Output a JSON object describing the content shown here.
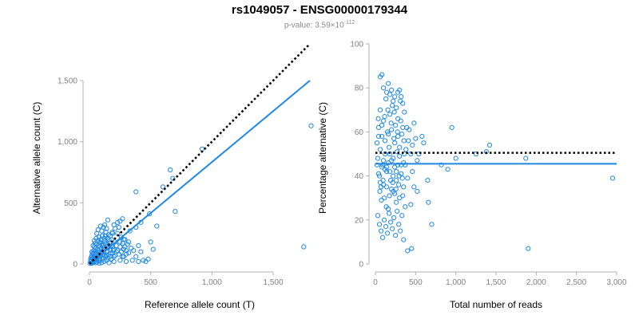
{
  "header": {
    "title": "rs1049057 - ENSG00000179344",
    "pvalue_prefix": "p-value: 3.59×10",
    "pvalue_exp": "-112"
  },
  "colors": {
    "points": "#1e88e5",
    "fit_line": "#1e88e5",
    "reference_line": "#000000",
    "tick_text": "#7f7f7f",
    "axis": "#b0b0b0"
  },
  "chart_data": [
    {
      "type": "scatter",
      "xlabel": "Reference allele count (T)",
      "ylabel": "Alternative allele count (C)",
      "xlim": [
        0,
        1800
      ],
      "ylim": [
        0,
        1800
      ],
      "xticks": [
        0,
        500,
        1000,
        1500
      ],
      "xtick_labels": [
        "0",
        "500",
        "1,000",
        "1,500"
      ],
      "yticks": [
        0,
        500,
        1000,
        1500
      ],
      "ytick_labels": [
        "0",
        "500",
        "1,000",
        "1,500"
      ],
      "grid": false,
      "reference_line": {
        "style": "dotted",
        "x": [
          0,
          1800
        ],
        "y": [
          0,
          1800
        ]
      },
      "fit_line": {
        "style": "solid",
        "x": [
          0,
          1800
        ],
        "y": [
          0,
          1500
        ]
      },
      "points": [
        [
          20,
          5
        ],
        [
          30,
          12
        ],
        [
          40,
          20
        ],
        [
          15,
          30
        ],
        [
          25,
          45
        ],
        [
          50,
          10
        ],
        [
          60,
          35
        ],
        [
          35,
          60
        ],
        [
          45,
          80
        ],
        [
          70,
          55
        ],
        [
          80,
          25
        ],
        [
          90,
          70
        ],
        [
          55,
          100
        ],
        [
          65,
          120
        ],
        [
          100,
          90
        ],
        [
          110,
          40
        ],
        [
          75,
          150
        ],
        [
          85,
          180
        ],
        [
          120,
          130
        ],
        [
          130,
          60
        ],
        [
          140,
          100
        ],
        [
          95,
          200
        ],
        [
          105,
          230
        ],
        [
          60,
          250
        ],
        [
          70,
          280
        ],
        [
          150,
          160
        ],
        [
          160,
          80
        ],
        [
          170,
          120
        ],
        [
          115,
          300
        ],
        [
          125,
          320
        ],
        [
          90,
          310
        ],
        [
          135,
          260
        ],
        [
          180,
          200
        ],
        [
          190,
          140
        ],
        [
          200,
          60
        ],
        [
          210,
          180
        ],
        [
          220,
          100
        ],
        [
          230,
          250
        ],
        [
          240,
          300
        ],
        [
          250,
          140
        ],
        [
          260,
          220
        ],
        [
          30,
          90
        ],
        [
          40,
          140
        ],
        [
          20,
          70
        ],
        [
          10,
          20
        ],
        [
          45,
          170
        ],
        [
          55,
          210
        ],
        [
          35,
          110
        ],
        [
          65,
          65
        ],
        [
          75,
          95
        ],
        [
          85,
          45
        ],
        [
          95,
          130
        ],
        [
          105,
          165
        ],
        [
          115,
          75
        ],
        [
          125,
          190
        ],
        [
          145,
          210
        ],
        [
          155,
          240
        ],
        [
          165,
          170
        ],
        [
          175,
          90
        ],
        [
          185,
          260
        ],
        [
          195,
          110
        ],
        [
          15,
          55
        ],
        [
          25,
          85
        ],
        [
          35,
          35
        ],
        [
          50,
          130
        ],
        [
          60,
          160
        ],
        [
          70,
          190
        ],
        [
          80,
          220
        ],
        [
          100,
          270
        ],
        [
          110,
          110
        ],
        [
          120,
          210
        ],
        [
          130,
          170
        ],
        [
          140,
          290
        ],
        [
          150,
          130
        ],
        [
          160,
          200
        ],
        [
          170,
          230
        ],
        [
          180,
          150
        ],
        [
          190,
          250
        ],
        [
          270,
          170
        ],
        [
          280,
          120
        ],
        [
          290,
          200
        ],
        [
          300,
          80
        ],
        [
          310,
          160
        ],
        [
          320,
          90
        ],
        [
          340,
          130
        ],
        [
          360,
          110
        ],
        [
          380,
          60
        ],
        [
          400,
          150
        ],
        [
          420,
          100
        ],
        [
          440,
          30
        ],
        [
          460,
          20
        ],
        [
          480,
          40
        ],
        [
          500,
          180
        ],
        [
          520,
          120
        ],
        [
          380,
          590
        ],
        [
          490,
          410
        ],
        [
          600,
          630
        ],
        [
          660,
          770
        ],
        [
          680,
          700
        ],
        [
          920,
          940
        ],
        [
          1750,
          140
        ],
        [
          1810,
          1130
        ],
        [
          700,
          430
        ],
        [
          550,
          310
        ],
        [
          380,
          300
        ],
        [
          420,
          340
        ],
        [
          330,
          270
        ],
        [
          250,
          350
        ],
        [
          200,
          320
        ],
        [
          150,
          360
        ],
        [
          270,
          370
        ],
        [
          230,
          340
        ],
        [
          210,
          290
        ],
        [
          250,
          30
        ],
        [
          300,
          20
        ],
        [
          350,
          30
        ],
        [
          400,
          20
        ],
        [
          280,
          60
        ],
        [
          200,
          20
        ],
        [
          160,
          10
        ],
        [
          140,
          30
        ],
        [
          120,
          20
        ],
        [
          100,
          10
        ],
        [
          80,
          5
        ],
        [
          60,
          15
        ],
        [
          40,
          40
        ],
        [
          25,
          15
        ],
        [
          15,
          10
        ],
        [
          5,
          5
        ],
        [
          10,
          40
        ],
        [
          20,
          100
        ],
        [
          30,
          150
        ],
        [
          40,
          190
        ],
        [
          50,
          50
        ],
        [
          60,
          80
        ],
        [
          70,
          110
        ],
        [
          80,
          140
        ],
        [
          90,
          170
        ],
        [
          100,
          50
        ],
        [
          110,
          150
        ],
        [
          120,
          100
        ],
        [
          130,
          230
        ],
        [
          140,
          70
        ],
        [
          150,
          50
        ],
        [
          160,
          140
        ],
        [
          170,
          60
        ],
        [
          180,
          40
        ],
        [
          190,
          90
        ],
        [
          200,
          120
        ],
        [
          210,
          70
        ],
        [
          220,
          150
        ],
        [
          230,
          110
        ],
        [
          240,
          80
        ],
        [
          250,
          180
        ],
        [
          260,
          100
        ],
        [
          270,
          60
        ],
        [
          280,
          200
        ],
        [
          290,
          140
        ],
        [
          300,
          110
        ],
        [
          320,
          180
        ]
      ]
    },
    {
      "type": "scatter",
      "xlabel": "Total number of reads",
      "ylabel": "Percentage alternative (C)",
      "xlim": [
        0,
        3000
      ],
      "ylim": [
        0,
        100
      ],
      "xticks": [
        0,
        500,
        1000,
        1500,
        2000,
        2500,
        3000
      ],
      "xtick_labels": [
        "0",
        "500",
        "1,000",
        "1,500",
        "2,000",
        "2,500",
        "3,000"
      ],
      "yticks": [
        0,
        20,
        40,
        60,
        80,
        100
      ],
      "ytick_labels": [
        "0",
        "20",
        "40",
        "60",
        "80",
        "100"
      ],
      "grid": false,
      "reference_line": {
        "style": "dotted",
        "x": [
          0,
          3000
        ],
        "y": [
          50.5,
          50.5
        ]
      },
      "fit_line": {
        "style": "solid",
        "x": [
          0,
          3000
        ],
        "y": [
          45.5,
          45.5
        ]
      },
      "points": [
        [
          20,
          55
        ],
        [
          30,
          48
        ],
        [
          40,
          62
        ],
        [
          50,
          40
        ],
        [
          60,
          70
        ],
        [
          70,
          35
        ],
        [
          80,
          58
        ],
        [
          90,
          45
        ],
        [
          100,
          65
        ],
        [
          110,
          30
        ],
        [
          120,
          50
        ],
        [
          130,
          75
        ],
        [
          140,
          42
        ],
        [
          150,
          60
        ],
        [
          160,
          25
        ],
        [
          170,
          53
        ],
        [
          180,
          68
        ],
        [
          190,
          38
        ],
        [
          200,
          47
        ],
        [
          210,
          72
        ],
        [
          220,
          33
        ],
        [
          230,
          57
        ],
        [
          240,
          44
        ],
        [
          250,
          63
        ],
        [
          260,
          28
        ],
        [
          270,
          51
        ],
        [
          280,
          66
        ],
        [
          290,
          36
        ],
        [
          300,
          49
        ],
        [
          310,
          74
        ],
        [
          320,
          41
        ],
        [
          330,
          59
        ],
        [
          340,
          31
        ],
        [
          350,
          46
        ],
        [
          360,
          69
        ],
        [
          380,
          52
        ],
        [
          400,
          39
        ],
        [
          420,
          61
        ],
        [
          440,
          27
        ],
        [
          460,
          54
        ],
        [
          480,
          35
        ],
        [
          500,
          57
        ],
        [
          520,
          33
        ],
        [
          60,
          85
        ],
        [
          80,
          86
        ],
        [
          100,
          80
        ],
        [
          140,
          78
        ],
        [
          160,
          82
        ],
        [
          180,
          77
        ],
        [
          200,
          79
        ],
        [
          220,
          74
        ],
        [
          240,
          76
        ],
        [
          260,
          71
        ],
        [
          280,
          78
        ],
        [
          300,
          79
        ],
        [
          320,
          76
        ],
        [
          340,
          73
        ],
        [
          30,
          22
        ],
        [
          50,
          18
        ],
        [
          70,
          15
        ],
        [
          90,
          12
        ],
        [
          110,
          20
        ],
        [
          130,
          17
        ],
        [
          150,
          14
        ],
        [
          170,
          23
        ],
        [
          190,
          19
        ],
        [
          210,
          16
        ],
        [
          230,
          21
        ],
        [
          250,
          13
        ],
        [
          270,
          24
        ],
        [
          290,
          18
        ],
        [
          310,
          15
        ],
        [
          330,
          22
        ],
        [
          350,
          11
        ],
        [
          370,
          26
        ],
        [
          400,
          6
        ],
        [
          450,
          7
        ],
        [
          700,
          18
        ],
        [
          660,
          28
        ],
        [
          580,
          58
        ],
        [
          950,
          62
        ],
        [
          1000,
          48
        ],
        [
          900,
          43
        ],
        [
          1250,
          50
        ],
        [
          1380,
          51
        ],
        [
          1420,
          54
        ],
        [
          1870,
          48
        ],
        [
          1900,
          7
        ],
        [
          2950,
          39
        ],
        [
          820,
          45
        ],
        [
          40,
          58
        ],
        [
          60,
          52
        ],
        [
          80,
          63
        ],
        [
          100,
          47
        ],
        [
          120,
          56
        ],
        [
          140,
          44
        ],
        [
          160,
          59
        ],
        [
          180,
          50
        ],
        [
          200,
          61
        ],
        [
          220,
          48
        ],
        [
          240,
          55
        ],
        [
          260,
          42
        ],
        [
          280,
          58
        ],
        [
          300,
          53
        ],
        [
          320,
          45
        ],
        [
          340,
          62
        ],
        [
          360,
          50
        ],
        [
          20,
          45
        ],
        [
          35,
          66
        ],
        [
          55,
          33
        ],
        [
          75,
          29
        ],
        [
          95,
          38
        ],
        [
          115,
          67
        ],
        [
          135,
          26
        ],
        [
          155,
          70
        ],
        [
          175,
          31
        ],
        [
          195,
          64
        ],
        [
          215,
          37
        ],
        [
          235,
          69
        ],
        [
          255,
          34
        ],
        [
          275,
          60
        ],
        [
          295,
          40
        ],
        [
          315,
          65
        ],
        [
          335,
          39
        ],
        [
          355,
          56
        ],
        [
          40,
          41
        ],
        [
          60,
          37
        ],
        [
          80,
          44
        ],
        [
          100,
          36
        ],
        [
          120,
          43
        ],
        [
          140,
          35
        ],
        [
          160,
          46
        ],
        [
          180,
          42
        ],
        [
          200,
          34
        ],
        [
          220,
          40
        ],
        [
          240,
          32
        ],
        [
          260,
          38
        ],
        [
          280,
          45
        ],
        [
          300,
          30
        ],
        [
          480,
          64
        ],
        [
          520,
          47
        ],
        [
          440,
          50
        ],
        [
          410,
          56
        ],
        [
          390,
          62
        ],
        [
          460,
          42
        ],
        [
          540,
          50
        ],
        [
          600,
          55
        ],
        [
          650,
          38
        ],
        [
          370,
          45
        ],
        [
          350,
          35
        ]
      ]
    }
  ]
}
